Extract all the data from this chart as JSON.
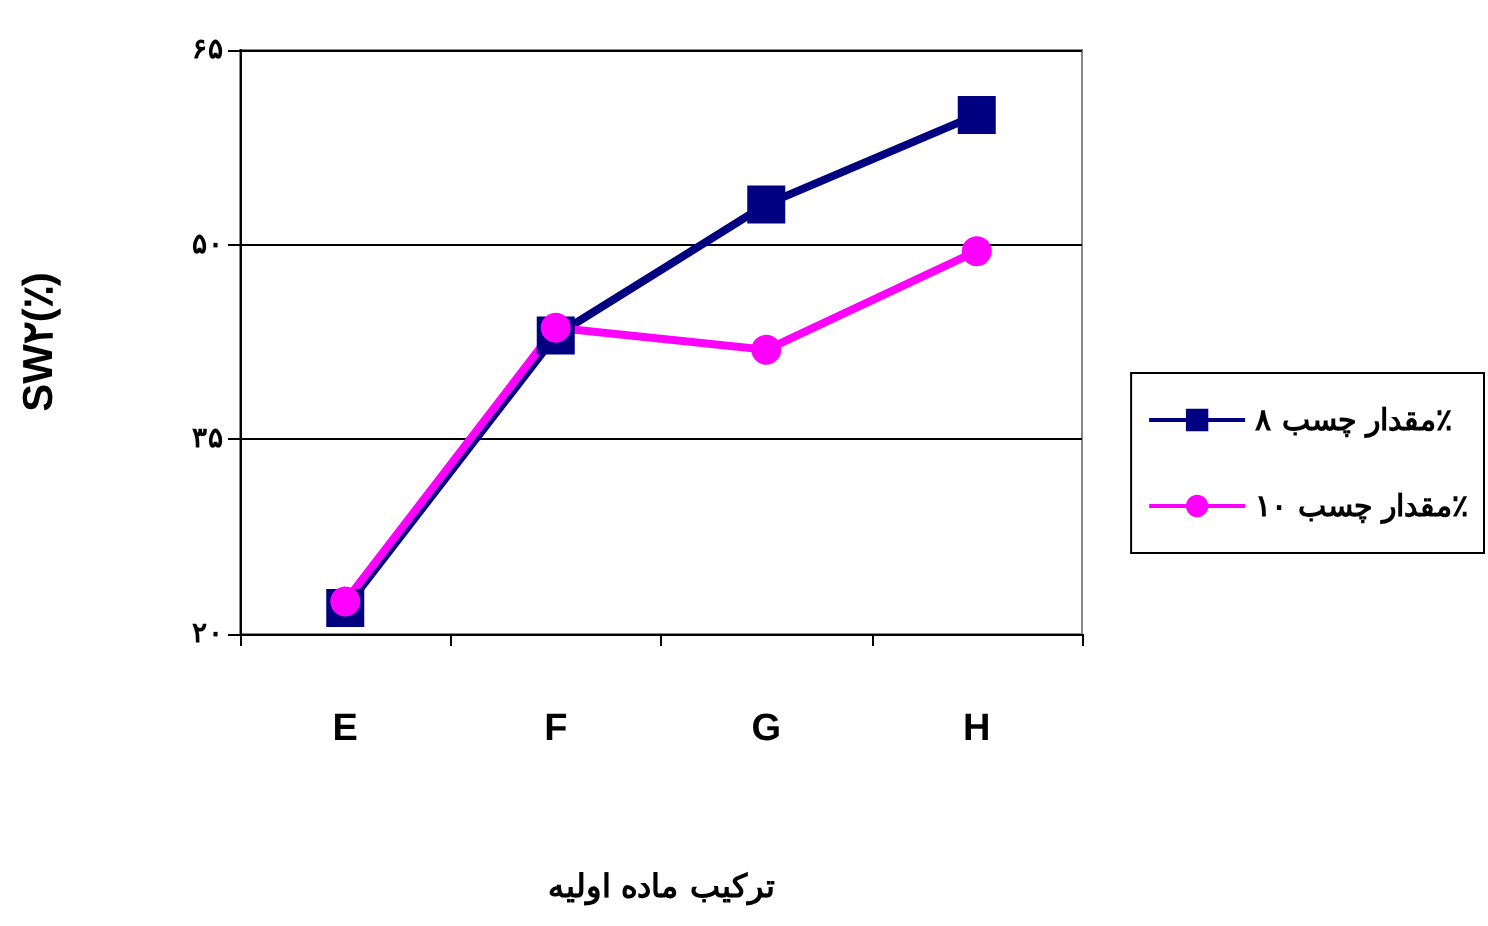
{
  "chart_data": {
    "type": "line",
    "xlabel": "ترکیب ماده اولیه",
    "ylabel": "SW۲(٪)",
    "categories": [
      "E",
      "F",
      "G",
      "H"
    ],
    "series": [
      {
        "name": "مقدار چسب ۸٪",
        "color": "#000080",
        "marker": "square",
        "values": [
          22.0,
          43.0,
          53.1,
          60.0
        ]
      },
      {
        "name": "مقدار چسب ۱۰٪",
        "color": "#ff00ff",
        "marker": "circle",
        "values": [
          22.5,
          43.6,
          41.9,
          49.5
        ]
      }
    ],
    "ylim": [
      20,
      65
    ],
    "yticks": [
      {
        "value": 20,
        "label": "۲۰"
      },
      {
        "value": 35,
        "label": "۳۵"
      },
      {
        "value": 50,
        "label": "۵۰"
      },
      {
        "value": 65,
        "label": "۶۵"
      }
    ],
    "grid": "y",
    "legend": "right",
    "line_style": "solid"
  }
}
